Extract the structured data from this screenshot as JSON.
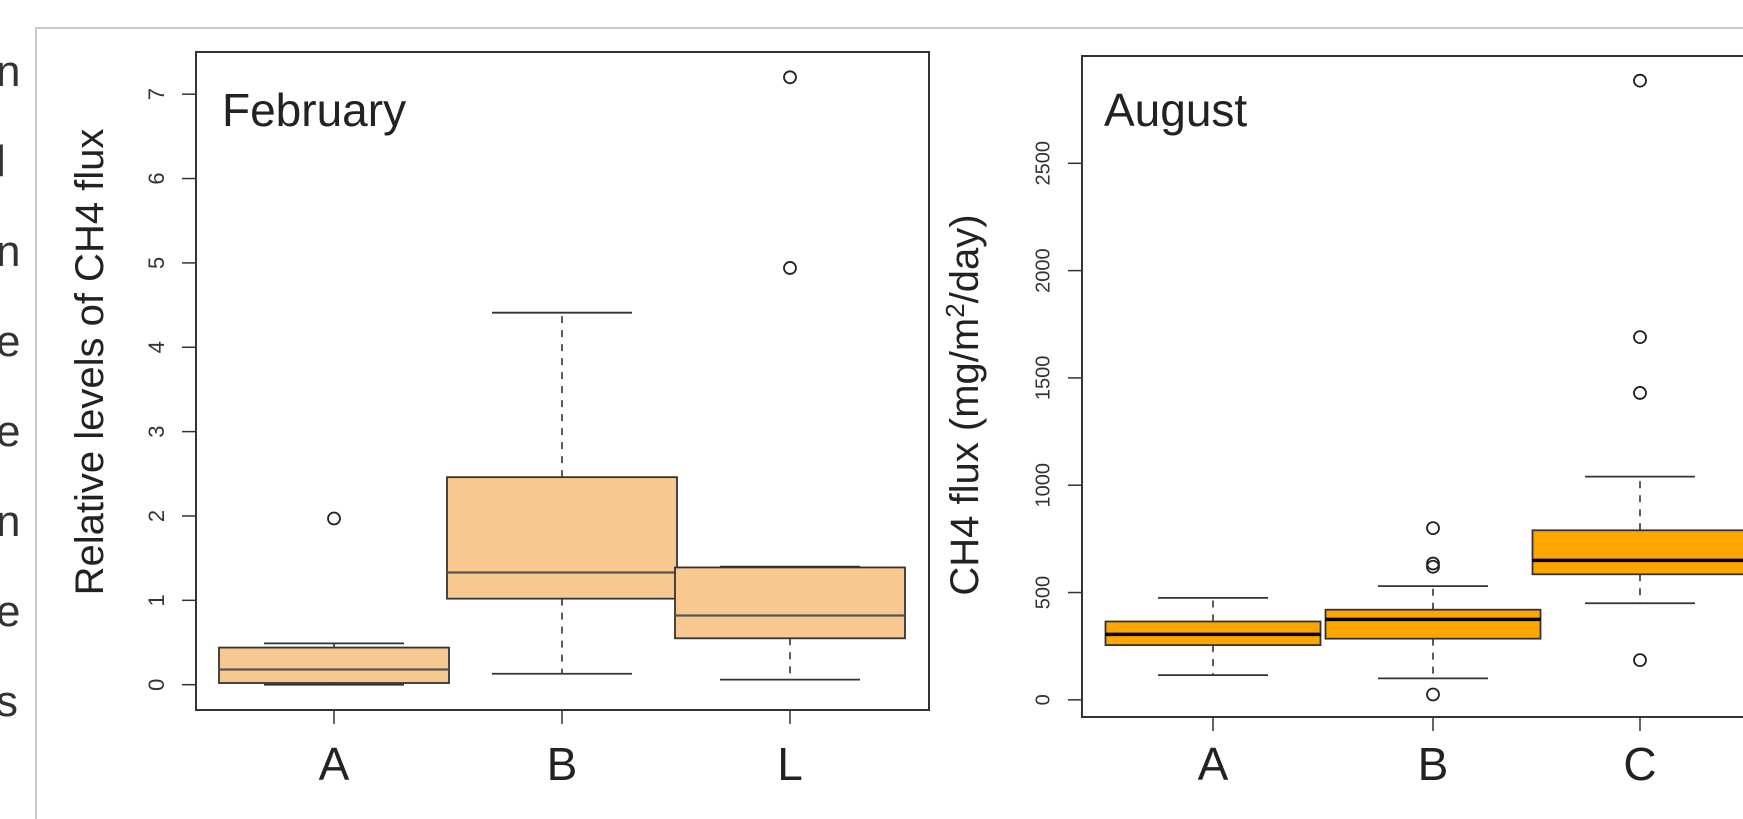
{
  "chart_data": [
    {
      "type": "boxplot",
      "title": "February",
      "ylabel": "Relative levels of CH4 flux",
      "ylim": [
        -0.3,
        7.5
      ],
      "yticks": [
        "0",
        "1",
        "2",
        "3",
        "4",
        "5",
        "6",
        "7"
      ],
      "categories": [
        "A",
        "B",
        "L"
      ],
      "box_color": "#f8c891",
      "median_color": "#555555",
      "boxes": [
        {
          "category": "A",
          "whisker_low": 0.0,
          "q1": 0.02,
          "median": 0.18,
          "q3": 0.44,
          "whisker_high": 0.49,
          "outliers": [
            1.97
          ]
        },
        {
          "category": "B",
          "whisker_low": 0.13,
          "q1": 1.02,
          "median": 1.33,
          "q3": 2.46,
          "whisker_high": 4.41,
          "outliers": []
        },
        {
          "category": "L",
          "whisker_low": 0.06,
          "q1": 0.55,
          "median": 0.82,
          "q3": 1.39,
          "whisker_high": 1.4,
          "outliers": [
            4.94,
            7.2
          ]
        }
      ]
    },
    {
      "type": "boxplot",
      "title": "August",
      "ylabel_prefix": "CH4 flux (mg/m",
      "ylabel_sup": "2",
      "ylabel_suffix": "/day)",
      "ylim": [
        -80,
        3000
      ],
      "yticks": [
        "0",
        "500",
        "1000",
        "1500",
        "2000",
        "2500"
      ],
      "categories": [
        "A",
        "B",
        "C"
      ],
      "box_color": "#ffa500",
      "median_color": "#000000",
      "boxes": [
        {
          "category": "A",
          "whisker_low": 115,
          "q1": 255,
          "median": 305,
          "q3": 365,
          "whisker_high": 475,
          "outliers": []
        },
        {
          "category": "B",
          "whisker_low": 100,
          "q1": 285,
          "median": 375,
          "q3": 420,
          "whisker_high": 530,
          "outliers": [
            25,
            620,
            635,
            800
          ]
        },
        {
          "category": "C",
          "whisker_low": 450,
          "q1": 585,
          "median": 650,
          "q3": 790,
          "whisker_high": 1040,
          "outliers": [
            185,
            1430,
            1690,
            2885
          ]
        }
      ]
    }
  ],
  "left_edge_text": [
    "n",
    "l",
    "n",
    "e",
    "e",
    "n",
    "e",
    "s"
  ]
}
